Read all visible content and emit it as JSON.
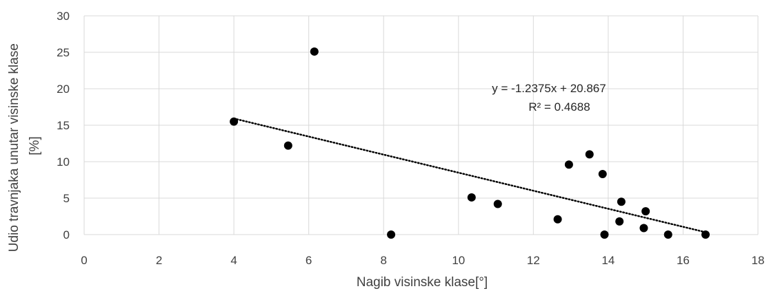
{
  "chart_data": {
    "type": "scatter",
    "title": "",
    "xlabel": "Nagib visinske klase[°]",
    "ylabel": [
      "Udio travnjaka unutar visinske klase",
      "[%]"
    ],
    "xlim": [
      0,
      18
    ],
    "ylim": [
      0,
      30
    ],
    "x_ticks": [
      0,
      2,
      4,
      6,
      8,
      10,
      12,
      14,
      16,
      18
    ],
    "y_ticks": [
      0,
      5,
      10,
      15,
      20,
      25,
      30
    ],
    "x_tick_labels": [
      "0",
      "2",
      "4",
      "6",
      "8",
      "10",
      "12",
      "14",
      "16",
      "18"
    ],
    "y_tick_labels": [
      "0",
      "5",
      "10",
      "15",
      "20",
      "25",
      "30"
    ],
    "grid": true,
    "legend": "none",
    "series": [
      {
        "color": "#000000",
        "points": [
          {
            "x": 4.0,
            "y": 15.5
          },
          {
            "x": 5.45,
            "y": 12.2
          },
          {
            "x": 6.15,
            "y": 25.1
          },
          {
            "x": 8.2,
            "y": 0.0
          },
          {
            "x": 10.35,
            "y": 5.1
          },
          {
            "x": 11.05,
            "y": 4.2
          },
          {
            "x": 12.65,
            "y": 2.1
          },
          {
            "x": 12.95,
            "y": 9.6
          },
          {
            "x": 13.5,
            "y": 11.0
          },
          {
            "x": 13.85,
            "y": 8.3
          },
          {
            "x": 13.9,
            "y": 0.0
          },
          {
            "x": 14.3,
            "y": 1.8
          },
          {
            "x": 14.35,
            "y": 4.5
          },
          {
            "x": 14.95,
            "y": 0.9
          },
          {
            "x": 15.0,
            "y": 3.2
          },
          {
            "x": 15.6,
            "y": 0.0
          },
          {
            "x": 16.6,
            "y": 0.0
          }
        ]
      }
    ],
    "trendline": {
      "type": "linear",
      "slope": -1.2375,
      "intercept": 20.867,
      "x_range": [
        4.0,
        16.6
      ],
      "style": "dotted",
      "equation_label": "y = -1.2375x + 20.867",
      "r2_label": "R² = 0.4688"
    },
    "colors": {
      "grid": "#d9d9d9",
      "text": "#404040",
      "marker": "#000000",
      "trendline": "#000000"
    }
  }
}
